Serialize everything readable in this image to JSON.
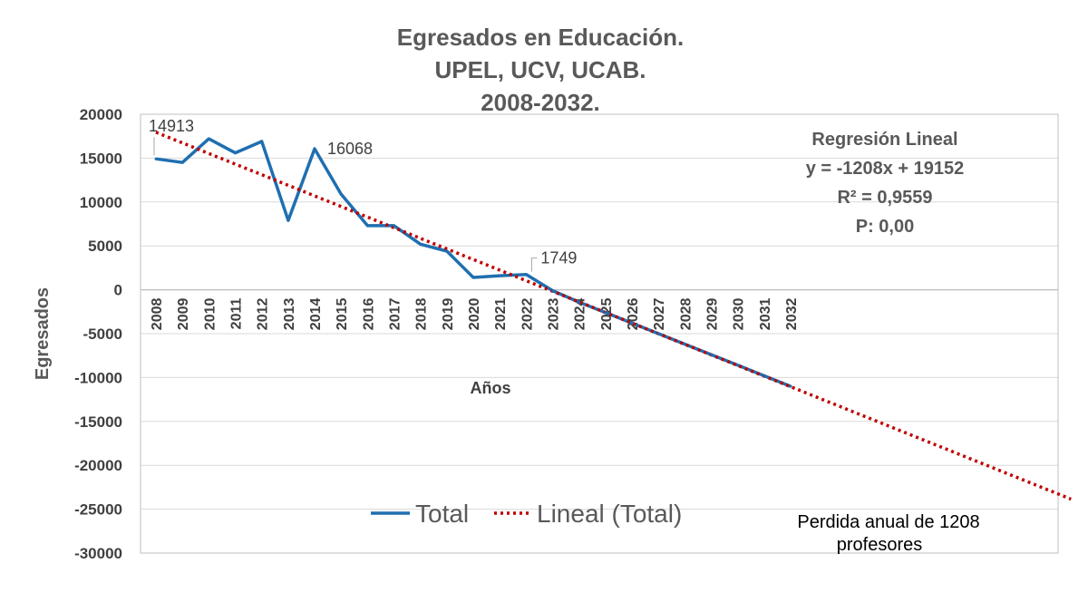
{
  "chart_data": {
    "type": "line",
    "title": [
      "Egresados en Educación.",
      "UPEL, UCV, UCAB.",
      "2008-2032."
    ],
    "xlabel": "Años",
    "ylabel": "Egresados",
    "ylim": [
      -30000,
      20000
    ],
    "yticks": [
      20000,
      15000,
      10000,
      5000,
      0,
      -5000,
      -10000,
      -15000,
      -20000,
      -25000,
      -30000
    ],
    "grid": true,
    "categories": [
      "2008",
      "2009",
      "2010",
      "2011",
      "2012",
      "2013",
      "2014",
      "2015",
      "2016",
      "2017",
      "2018",
      "2019",
      "2020",
      "2021",
      "2022",
      "2023",
      "2024",
      "2025",
      "2026",
      "2027",
      "2028",
      "2029",
      "2030",
      "2031",
      "2032"
    ],
    "series": [
      {
        "name": "Total",
        "color": "#1f6fb0",
        "values": [
          14913,
          14500,
          17200,
          15600,
          16900,
          7900,
          16068,
          10900,
          7300,
          7300,
          5200,
          4400,
          1400,
          1600,
          1749,
          -100,
          -1400,
          -2600,
          -3800,
          -5000,
          -6200,
          -7400,
          -8600,
          -9800,
          -11000
        ]
      }
    ],
    "trendline": {
      "name": "Lineal (Total)",
      "color": "#c00000",
      "slope": -1208,
      "intercept": 19152,
      "x_extent": [
        0,
        35
      ]
    },
    "data_labels": [
      {
        "index": 0,
        "text": "14913"
      },
      {
        "index": 6,
        "text": "16068"
      },
      {
        "index": 14,
        "text": "1749"
      }
    ],
    "regression_box": {
      "title": "Regresión Lineal",
      "equation": "y = -1208x + 19152",
      "r2": "R² = 0,9559",
      "p": "P: 0,00"
    },
    "legend": {
      "items": [
        "Total",
        "Lineal (Total)"
      ],
      "position": "bottom"
    },
    "annotation": [
      "Perdida anual de 1208",
      "profesores"
    ]
  }
}
